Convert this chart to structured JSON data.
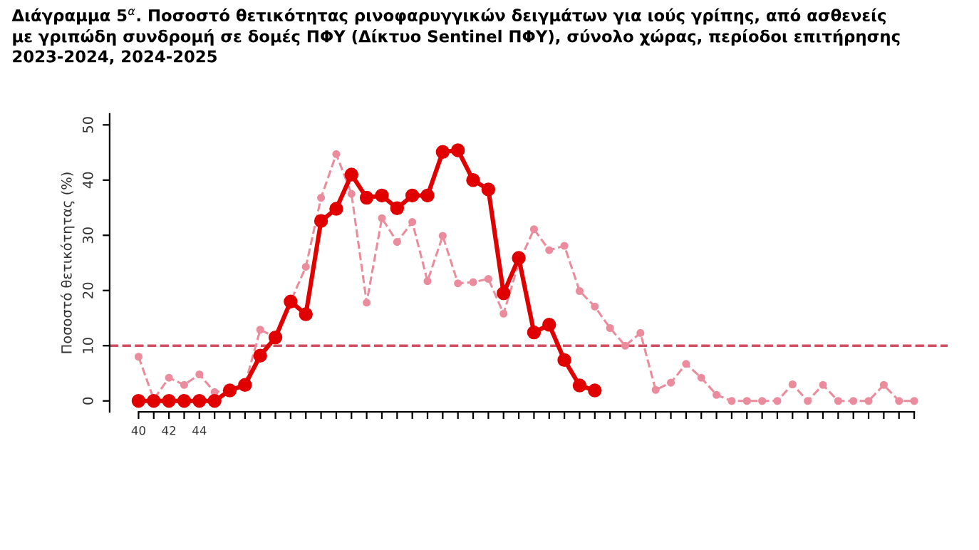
{
  "chart_data": {
    "type": "line",
    "title": "Διάγραμμα 5$^{α}$. Ποσοστό θετικότητας ρινοφαρυγγικών δειγμάτων για ιούς γρίπης, από ασθενείς\nμε γριπώδη συνδρομή σε δομές ΠΦΥ (Δίκτυο Sentinel ΠΦΥ), σύνολο χώρας, περίοδοι επιτήρησης\n2023-2024, 2024-2025",
    "ylabel": "Ποσοστό θετικότητας (%)",
    "categories": [
      "40",
      null,
      "42",
      null,
      "44",
      null,
      null,
      null,
      null,
      null,
      null,
      null,
      null,
      null,
      null,
      null,
      null,
      null,
      null,
      null,
      null,
      null,
      null,
      null,
      null,
      null,
      null,
      null,
      null,
      null,
      null,
      null,
      null,
      null,
      null,
      null,
      null,
      null,
      null,
      null,
      null,
      null,
      null,
      null,
      null,
      null,
      null,
      null,
      null,
      null,
      null,
      null
    ],
    "series": [
      {
        "color": "#eb8c9c",
        "line_style": "dashed",
        "marker": "circle",
        "values": [
          8.0,
          0.3,
          4.2,
          2.9,
          4.8,
          1.6,
          2,
          3,
          12.9,
          11.5,
          18,
          24.3,
          36.8,
          44.7,
          37.5,
          17.8,
          33.1,
          28.8,
          32.4,
          21.7,
          29.9,
          21.3,
          21.5,
          22.1,
          15.8,
          25,
          31.1,
          27.3,
          28.1,
          19.9,
          17.1,
          13.2,
          10.0,
          12.3,
          2.0,
          3.3,
          6.7,
          4.2,
          1.1,
          0,
          0,
          0,
          0,
          3.0,
          0,
          2.9,
          0,
          0,
          0,
          2.9,
          0,
          0
        ]
      },
      {
        "color": "#e00000",
        "line_style": "solid",
        "marker": "circle",
        "values": [
          0,
          0,
          0,
          0,
          0,
          0,
          1.9,
          2.9,
          8.2,
          11.5,
          18.0,
          15.7,
          32.6,
          34.8,
          41.0,
          36.8,
          37.2,
          34.9,
          37.2,
          37.2,
          45.1,
          45.4,
          40.0,
          38.3,
          19.5,
          25.9,
          12.4,
          13.8,
          7.4,
          2.8,
          1.9,
          null,
          null,
          null,
          null,
          null,
          null,
          null,
          null,
          null,
          null,
          null,
          null,
          null,
          null,
          null,
          null,
          null,
          null,
          null,
          null,
          null
        ]
      }
    ],
    "ylim": [
      -2,
      52
    ],
    "yticks": [
      0,
      10,
      20,
      30,
      40,
      50
    ],
    "ref_lines": [
      {
        "axis": "y",
        "value": 10,
        "color": "#d05060",
        "line_style": "dashed"
      }
    ],
    "grid": false,
    "legend": false
  }
}
